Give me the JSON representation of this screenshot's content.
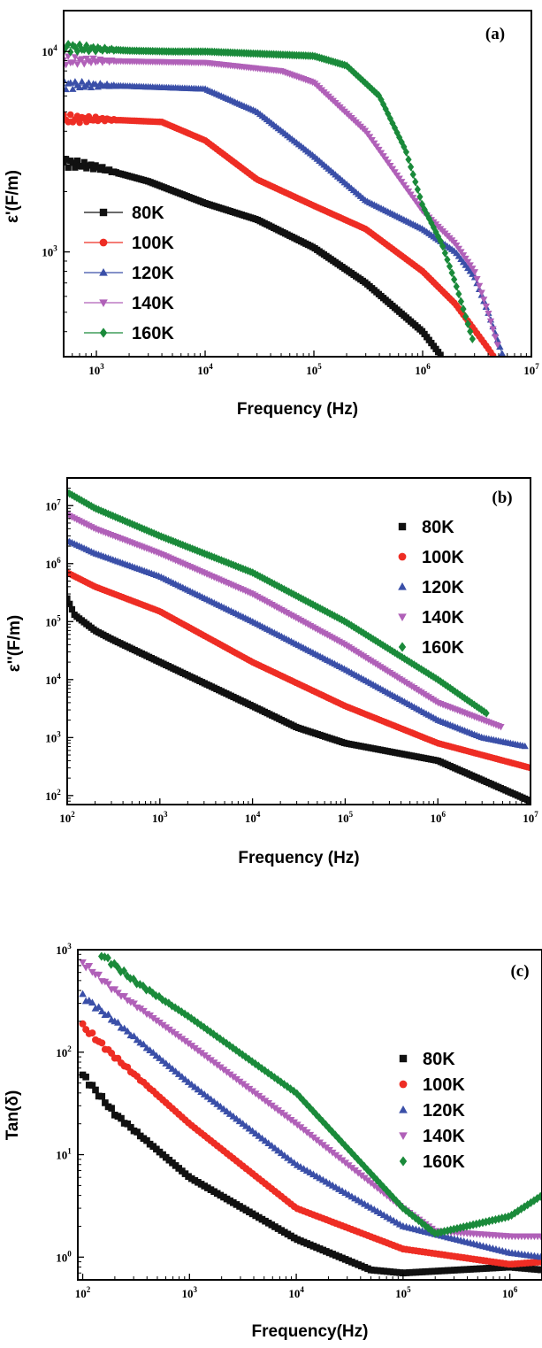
{
  "colors": {
    "80K": "#111111",
    "100K": "#ee2d24",
    "120K": "#3a4fa8",
    "140K": "#b060b8",
    "160K": "#1a8a3a"
  },
  "marker_shapes": {
    "80K": "square",
    "100K": "circle",
    "120K": "triangle-up",
    "140K": "triangle-down",
    "160K": "diamond"
  },
  "chart_data": [
    {
      "id": "a",
      "type": "line",
      "panel_label": "(a)",
      "xlabel": "Frequency (Hz)",
      "ylabel": "ε'(F/m)",
      "xscale": "log",
      "yscale": "log",
      "xlim": [
        500,
        10000000
      ],
      "ylim": [
        300,
        16000
      ],
      "xticks": [
        {
          "v": 1000,
          "base": "10",
          "exp": "3"
        },
        {
          "v": 10000,
          "base": "10",
          "exp": "4"
        },
        {
          "v": 100000,
          "base": "10",
          "exp": "5"
        },
        {
          "v": 1000000,
          "base": "10",
          "exp": "6"
        },
        {
          "v": 10000000,
          "base": "10",
          "exp": "7"
        }
      ],
      "yticks": [
        {
          "v": 1000,
          "base": "10",
          "exp": "3"
        },
        {
          "v": 10000,
          "base": "10",
          "exp": "4"
        }
      ],
      "legend_position": "bottom-left",
      "legend_style": "line",
      "series": [
        {
          "name": "80K",
          "points": [
            [
              500,
              2800
            ],
            [
              1000,
              2650
            ],
            [
              3000,
              2250
            ],
            [
              10000,
              1750
            ],
            [
              30000,
              1450
            ],
            [
              100000,
              1050
            ],
            [
              300000,
              700
            ],
            [
              1000000,
              400
            ],
            [
              1500000,
              300
            ]
          ]
        },
        {
          "name": "100K",
          "points": [
            [
              500,
              4600
            ],
            [
              1000,
              4600
            ],
            [
              4000,
              4450
            ],
            [
              10000,
              3600
            ],
            [
              30000,
              2300
            ],
            [
              100000,
              1700
            ],
            [
              300000,
              1300
            ],
            [
              1000000,
              800
            ],
            [
              2000000,
              550
            ],
            [
              4000000,
              330
            ],
            [
              4500000,
              300
            ]
          ]
        },
        {
          "name": "120K",
          "points": [
            [
              500,
              6800
            ],
            [
              1000,
              6800
            ],
            [
              10000,
              6500
            ],
            [
              30000,
              5000
            ],
            [
              100000,
              3000
            ],
            [
              300000,
              1800
            ],
            [
              1000000,
              1300
            ],
            [
              2000000,
              1000
            ],
            [
              3000000,
              750
            ],
            [
              4000000,
              500
            ],
            [
              5500000,
              300
            ]
          ]
        },
        {
          "name": "140K",
          "points": [
            [
              500,
              9000
            ],
            [
              1000,
              9000
            ],
            [
              10000,
              8800
            ],
            [
              50000,
              8000
            ],
            [
              100000,
              7000
            ],
            [
              300000,
              4000
            ],
            [
              1000000,
              1600
            ],
            [
              2000000,
              1100
            ],
            [
              3000000,
              800
            ],
            [
              4000000,
              500
            ],
            [
              5000000,
              330
            ]
          ]
        },
        {
          "name": "160K",
          "points": [
            [
              500,
              10500
            ],
            [
              700,
              10400
            ],
            [
              1000,
              10300
            ],
            [
              2000,
              10100
            ],
            [
              5000,
              10000
            ],
            [
              10000,
              10000
            ],
            [
              100000,
              9500
            ],
            [
              200000,
              8500
            ],
            [
              400000,
              6000
            ],
            [
              700000,
              3200
            ],
            [
              1000000,
              1700
            ],
            [
              1500000,
              1100
            ],
            [
              2000000,
              700
            ],
            [
              3000000,
              340
            ]
          ]
        }
      ]
    },
    {
      "id": "b",
      "type": "scatter",
      "panel_label": "(b)",
      "xlabel": "Frequency (Hz)",
      "ylabel": "ε''(F/m)",
      "xscale": "log",
      "yscale": "log",
      "xlim": [
        100,
        10000000
      ],
      "ylim": [
        70,
        30000000
      ],
      "xticks": [
        {
          "v": 100,
          "base": "10",
          "exp": "2"
        },
        {
          "v": 1000,
          "base": "10",
          "exp": "3"
        },
        {
          "v": 10000,
          "base": "10",
          "exp": "4"
        },
        {
          "v": 100000,
          "base": "10",
          "exp": "5"
        },
        {
          "v": 1000000,
          "base": "10",
          "exp": "6"
        },
        {
          "v": 10000000,
          "base": "10",
          "exp": "7"
        }
      ],
      "yticks": [
        {
          "v": 100,
          "base": "10",
          "exp": "2"
        },
        {
          "v": 1000,
          "base": "10",
          "exp": "3"
        },
        {
          "v": 10000,
          "base": "10",
          "exp": "4"
        },
        {
          "v": 100000,
          "base": "10",
          "exp": "5"
        },
        {
          "v": 1000000,
          "base": "10",
          "exp": "6"
        },
        {
          "v": 10000000,
          "base": "10",
          "exp": "7"
        }
      ],
      "legend_position": "top-right",
      "legend_style": "marker",
      "series": [
        {
          "name": "80K",
          "points": [
            [
              100,
              250000
            ],
            [
              120,
              130000
            ],
            [
              200,
              70000
            ],
            [
              300,
              50000
            ],
            [
              1000,
              20000
            ],
            [
              10000,
              3500
            ],
            [
              30000,
              1500
            ],
            [
              100000,
              800
            ],
            [
              1000000,
              400
            ],
            [
              10000000,
              80
            ]
          ]
        },
        {
          "name": "100K",
          "points": [
            [
              100,
              700000
            ],
            [
              200,
              400000
            ],
            [
              1000,
              150000
            ],
            [
              10000,
              20000
            ],
            [
              100000,
              3500
            ],
            [
              1000000,
              800
            ],
            [
              10000000,
              300
            ],
            [
              10000000,
              220
            ]
          ]
        },
        {
          "name": "120K",
          "points": [
            [
              100,
              2500000
            ],
            [
              200,
              1500000
            ],
            [
              1000,
              600000
            ],
            [
              10000,
              100000
            ],
            [
              100000,
              15000
            ],
            [
              1000000,
              2000
            ],
            [
              3000000,
              1000
            ],
            [
              9000000,
              700
            ]
          ]
        },
        {
          "name": "140K",
          "points": [
            [
              100,
              7000000
            ],
            [
              200,
              4000000
            ],
            [
              1000,
              1500000
            ],
            [
              10000,
              300000
            ],
            [
              100000,
              40000
            ],
            [
              1000000,
              4000
            ],
            [
              5000000,
              1500
            ]
          ]
        },
        {
          "name": "160K",
          "points": [
            [
              100,
              17000000
            ],
            [
              200,
              9000000
            ],
            [
              1000,
              3000000
            ],
            [
              10000,
              700000
            ],
            [
              100000,
              100000
            ],
            [
              1000000,
              10000
            ],
            [
              3500000,
              2500
            ]
          ]
        }
      ]
    },
    {
      "id": "c",
      "type": "scatter",
      "panel_label": "(c)",
      "xlabel": "Frequency(Hz)",
      "ylabel": "Tan(δ)",
      "xscale": "log",
      "yscale": "log",
      "xlim": [
        90,
        2000000
      ],
      "ylim": [
        0.6,
        1000
      ],
      "xticks": [
        {
          "v": 100,
          "base": "10",
          "exp": "2"
        },
        {
          "v": 1000,
          "base": "10",
          "exp": "3"
        },
        {
          "v": 10000,
          "base": "10",
          "exp": "4"
        },
        {
          "v": 100000,
          "base": "10",
          "exp": "5"
        },
        {
          "v": 1000000,
          "base": "10",
          "exp": "6"
        }
      ],
      "yticks": [
        {
          "v": 1,
          "base": "10",
          "exp": "0"
        },
        {
          "v": 10,
          "base": "10",
          "exp": "1"
        },
        {
          "v": 100,
          "base": "10",
          "exp": "2"
        },
        {
          "v": 1000,
          "base": "10",
          "exp": "3"
        }
      ],
      "legend_position": "right",
      "legend_style": "marker",
      "series": [
        {
          "name": "80K",
          "points": [
            [
              100,
              60
            ],
            [
              200,
              25
            ],
            [
              1000,
              6
            ],
            [
              10000,
              1.5
            ],
            [
              50000,
              0.75
            ],
            [
              100000,
              0.7
            ],
            [
              1000000,
              0.8
            ],
            [
              2000000,
              0.75
            ]
          ]
        },
        {
          "name": "100K",
          "points": [
            [
              100,
              180
            ],
            [
              200,
              90
            ],
            [
              1000,
              20
            ],
            [
              10000,
              3
            ],
            [
              100000,
              1.2
            ],
            [
              1000000,
              0.85
            ],
            [
              2000000,
              0.9
            ]
          ]
        },
        {
          "name": "120K",
          "points": [
            [
              100,
              350
            ],
            [
              200,
              200
            ],
            [
              1000,
              50
            ],
            [
              10000,
              8
            ],
            [
              100000,
              2
            ],
            [
              1000000,
              1.1
            ],
            [
              2000000,
              1
            ]
          ]
        },
        {
          "name": "140K",
          "points": [
            [
              100,
              750
            ],
            [
              200,
              400
            ],
            [
              1000,
              120
            ],
            [
              10000,
              20
            ],
            [
              100000,
              3
            ],
            [
              200000,
              1.8
            ],
            [
              1000000,
              1.6
            ],
            [
              2000000,
              1.6
            ]
          ]
        },
        {
          "name": "160K",
          "points": [
            [
              150,
              900
            ],
            [
              300,
              500
            ],
            [
              1000,
              220
            ],
            [
              10000,
              40
            ],
            [
              100000,
              3
            ],
            [
              200000,
              1.7
            ],
            [
              1000000,
              2.5
            ],
            [
              2000000,
              4
            ]
          ]
        }
      ]
    }
  ]
}
